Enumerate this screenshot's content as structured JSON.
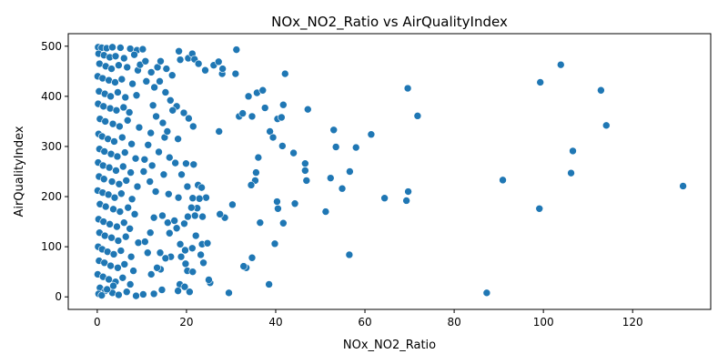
{
  "chart_data": {
    "type": "scatter",
    "title": "NOx_NO2_Ratio vs AirQualityIndex",
    "xlabel": "NOx_NO2_Ratio",
    "ylabel": "AirQualityIndex",
    "xlim": [
      -6.5,
      137.5
    ],
    "ylim": [
      -25,
      525
    ],
    "xticks": [
      0,
      20,
      40,
      60,
      80,
      100,
      120
    ],
    "yticks": [
      0,
      100,
      200,
      300,
      400,
      500
    ],
    "grid": false,
    "marker_color": "#1f77b4",
    "points": [
      [
        0.2,
        498
      ],
      [
        1.0,
        497
      ],
      [
        2.1,
        496
      ],
      [
        3.4,
        498
      ],
      [
        5.2,
        497
      ],
      [
        7.4,
        495
      ],
      [
        8.9,
        492
      ],
      [
        10.2,
        494
      ],
      [
        0.3,
        485
      ],
      [
        1.5,
        482
      ],
      [
        2.8,
        478
      ],
      [
        4.1,
        480
      ],
      [
        6.0,
        476
      ],
      [
        8.3,
        483
      ],
      [
        0.5,
        465
      ],
      [
        1.9,
        460
      ],
      [
        3.2,
        455
      ],
      [
        4.8,
        462
      ],
      [
        6.7,
        458
      ],
      [
        9.1,
        452
      ],
      [
        0.1,
        440
      ],
      [
        1.2,
        436
      ],
      [
        2.6,
        432
      ],
      [
        4.0,
        428
      ],
      [
        5.5,
        434
      ],
      [
        7.9,
        425
      ],
      [
        0.4,
        410
      ],
      [
        1.7,
        405
      ],
      [
        3.0,
        400
      ],
      [
        4.6,
        408
      ],
      [
        6.3,
        398
      ],
      [
        8.8,
        402
      ],
      [
        0.2,
        385
      ],
      [
        1.4,
        380
      ],
      [
        2.9,
        376
      ],
      [
        4.3,
        372
      ],
      [
        5.9,
        378
      ],
      [
        7.2,
        368
      ],
      [
        0.6,
        355
      ],
      [
        1.8,
        350
      ],
      [
        3.5,
        345
      ],
      [
        5.0,
        340
      ],
      [
        6.8,
        352
      ],
      [
        9.4,
        338
      ],
      [
        0.3,
        325
      ],
      [
        1.1,
        320
      ],
      [
        2.4,
        315
      ],
      [
        3.8,
        310
      ],
      [
        5.6,
        318
      ],
      [
        7.7,
        305
      ],
      [
        0.5,
        295
      ],
      [
        1.6,
        290
      ],
      [
        3.1,
        285
      ],
      [
        4.5,
        280
      ],
      [
        6.2,
        288
      ],
      [
        8.6,
        276
      ],
      [
        0.2,
        268
      ],
      [
        1.3,
        262
      ],
      [
        2.7,
        258
      ],
      [
        4.2,
        252
      ],
      [
        5.8,
        260
      ],
      [
        7.5,
        248
      ],
      [
        0.4,
        240
      ],
      [
        1.5,
        235
      ],
      [
        3.3,
        230
      ],
      [
        4.9,
        225
      ],
      [
        6.5,
        232
      ],
      [
        9.0,
        220
      ],
      [
        0.1,
        212
      ],
      [
        1.2,
        208
      ],
      [
        2.5,
        204
      ],
      [
        3.9,
        198
      ],
      [
        5.4,
        206
      ],
      [
        7.8,
        195
      ],
      [
        0.6,
        185
      ],
      [
        1.9,
        180
      ],
      [
        3.6,
        175
      ],
      [
        5.1,
        170
      ],
      [
        6.9,
        178
      ],
      [
        8.4,
        165
      ],
      [
        0.3,
        155
      ],
      [
        1.4,
        150
      ],
      [
        2.8,
        145
      ],
      [
        4.4,
        140
      ],
      [
        6.0,
        148
      ],
      [
        7.3,
        136
      ],
      [
        0.5,
        128
      ],
      [
        1.7,
        122
      ],
      [
        3.2,
        118
      ],
      [
        4.7,
        112
      ],
      [
        6.4,
        120
      ],
      [
        9.2,
        108
      ],
      [
        0.2,
        100
      ],
      [
        1.1,
        95
      ],
      [
        2.3,
        90
      ],
      [
        3.7,
        85
      ],
      [
        5.3,
        92
      ],
      [
        7.6,
        80
      ],
      [
        0.4,
        72
      ],
      [
        1.6,
        68
      ],
      [
        3.0,
        62
      ],
      [
        4.6,
        58
      ],
      [
        6.1,
        65
      ],
      [
        8.1,
        52
      ],
      [
        0.1,
        45
      ],
      [
        1.3,
        40
      ],
      [
        2.6,
        35
      ],
      [
        4.1,
        30
      ],
      [
        5.7,
        38
      ],
      [
        7.4,
        25
      ],
      [
        0.6,
        18
      ],
      [
        1.8,
        12
      ],
      [
        3.4,
        8
      ],
      [
        4.8,
        4
      ],
      [
        6.6,
        10
      ],
      [
        8.7,
        2
      ],
      [
        0.3,
        6
      ],
      [
        1.0,
        3
      ],
      [
        2.2,
        15
      ],
      [
        3.6,
        22
      ],
      [
        9.6,
        463
      ],
      [
        10.8,
        470
      ],
      [
        12.1,
        448
      ],
      [
        13.5,
        458
      ],
      [
        14.2,
        470
      ],
      [
        15.5,
        455
      ],
      [
        16.8,
        442
      ],
      [
        18.3,
        490
      ],
      [
        18.6,
        473
      ],
      [
        20.4,
        476
      ],
      [
        21.3,
        485
      ],
      [
        21.8,
        474
      ],
      [
        22.7,
        465
      ],
      [
        24.2,
        452
      ],
      [
        26.1,
        462
      ],
      [
        27.2,
        469
      ],
      [
        28.0,
        445
      ],
      [
        31.2,
        493
      ],
      [
        31.0,
        445
      ],
      [
        11.0,
        430
      ],
      [
        12.8,
        418
      ],
      [
        14.0,
        430
      ],
      [
        15.3,
        408
      ],
      [
        16.4,
        392
      ],
      [
        17.8,
        380
      ],
      [
        19.4,
        367
      ],
      [
        20.5,
        356
      ],
      [
        21.5,
        340
      ],
      [
        12.5,
        382
      ],
      [
        13.2,
        360
      ],
      [
        14.7,
        347
      ],
      [
        16.9,
        372
      ],
      [
        18.1,
        315
      ],
      [
        15.1,
        318
      ],
      [
        15.7,
        330
      ],
      [
        12.0,
        327
      ],
      [
        11.4,
        303
      ],
      [
        13.8,
        289
      ],
      [
        16.2,
        278
      ],
      [
        17.5,
        267
      ],
      [
        19.9,
        266
      ],
      [
        21.6,
        264
      ],
      [
        10.6,
        274
      ],
      [
        12.3,
        262
      ],
      [
        14.9,
        244
      ],
      [
        18.9,
        244
      ],
      [
        20.2,
        220
      ],
      [
        22.6,
        223
      ],
      [
        23.4,
        218
      ],
      [
        24.4,
        198
      ],
      [
        22.9,
        196
      ],
      [
        21.4,
        197
      ],
      [
        18.2,
        198
      ],
      [
        16.0,
        205
      ],
      [
        13.1,
        210
      ],
      [
        11.8,
        230
      ],
      [
        10.4,
        250
      ],
      [
        12.7,
        158
      ],
      [
        14.6,
        162
      ],
      [
        15.8,
        148
      ],
      [
        17.3,
        152
      ],
      [
        19.5,
        146
      ],
      [
        21.9,
        162
      ],
      [
        23.6,
        160
      ],
      [
        22.4,
        177
      ],
      [
        21.1,
        178
      ],
      [
        20.3,
        160
      ],
      [
        17.8,
        137
      ],
      [
        16.2,
        127
      ],
      [
        18.6,
        105
      ],
      [
        19.7,
        93
      ],
      [
        22.1,
        122
      ],
      [
        23.5,
        105
      ],
      [
        24.7,
        107
      ],
      [
        23.2,
        84
      ],
      [
        21.3,
        97
      ],
      [
        18.8,
        80
      ],
      [
        16.5,
        80
      ],
      [
        15.3,
        77
      ],
      [
        14.1,
        88
      ],
      [
        14.2,
        55
      ],
      [
        13.4,
        58
      ],
      [
        12.1,
        45
      ],
      [
        11.3,
        88
      ],
      [
        10.7,
        110
      ],
      [
        11.9,
        128
      ],
      [
        20.2,
        52
      ],
      [
        21.4,
        50
      ],
      [
        23.8,
        68
      ],
      [
        19.8,
        66
      ],
      [
        25.3,
        28
      ],
      [
        25.0,
        34
      ],
      [
        18.5,
        25
      ],
      [
        19.6,
        20
      ],
      [
        20.7,
        10
      ],
      [
        18.1,
        12
      ],
      [
        14.5,
        14
      ],
      [
        12.7,
        6
      ],
      [
        10.3,
        5
      ],
      [
        29.5,
        8
      ],
      [
        33.4,
        58
      ],
      [
        32.8,
        61
      ],
      [
        38.5,
        25
      ],
      [
        35.6,
        248
      ],
      [
        35.4,
        232
      ],
      [
        34.5,
        223
      ],
      [
        36.1,
        278
      ],
      [
        27.3,
        330
      ],
      [
        28.6,
        158
      ],
      [
        27.5,
        165
      ],
      [
        30.3,
        184
      ],
      [
        28.1,
        455
      ],
      [
        31.8,
        360
      ],
      [
        32.6,
        366
      ],
      [
        33.9,
        400
      ],
      [
        34.7,
        360
      ],
      [
        35.8,
        407
      ],
      [
        37.1,
        412
      ],
      [
        37.6,
        377
      ],
      [
        38.7,
        330
      ],
      [
        39.4,
        318
      ],
      [
        40.4,
        355
      ],
      [
        41.3,
        358
      ],
      [
        41.7,
        383
      ],
      [
        42.1,
        445
      ],
      [
        41.5,
        301
      ],
      [
        44.0,
        287
      ],
      [
        46.6,
        252
      ],
      [
        46.6,
        266
      ],
      [
        47.2,
        374
      ],
      [
        46.9,
        232
      ],
      [
        44.3,
        186
      ],
      [
        40.3,
        190
      ],
      [
        40.5,
        176
      ],
      [
        39.8,
        106
      ],
      [
        41.7,
        147
      ],
      [
        36.5,
        148
      ],
      [
        34.7,
        78
      ],
      [
        51.2,
        170
      ],
      [
        52.3,
        237
      ],
      [
        53.0,
        333
      ],
      [
        53.5,
        299
      ],
      [
        54.9,
        216
      ],
      [
        56.6,
        250
      ],
      [
        58.0,
        298
      ],
      [
        56.5,
        84
      ],
      [
        61.4,
        324
      ],
      [
        64.4,
        197
      ],
      [
        69.3,
        192
      ],
      [
        69.7,
        210
      ],
      [
        69.6,
        416
      ],
      [
        71.8,
        361
      ],
      [
        87.3,
        8
      ],
      [
        90.9,
        233
      ],
      [
        99.1,
        176
      ],
      [
        99.3,
        428
      ],
      [
        103.9,
        463
      ],
      [
        106.2,
        247
      ],
      [
        106.6,
        291
      ],
      [
        112.9,
        412
      ],
      [
        114.1,
        342
      ],
      [
        131.3,
        221
      ]
    ]
  }
}
